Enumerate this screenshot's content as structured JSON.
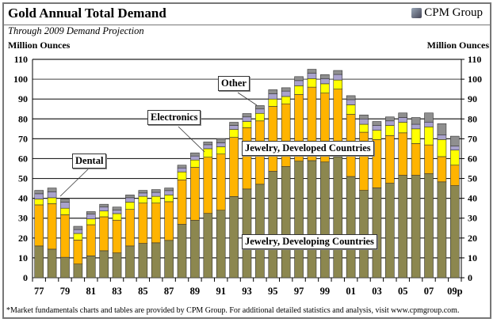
{
  "chart_data": {
    "type": "bar",
    "stacked": true,
    "title": "Gold Annual Total Demand",
    "subtitle": "Through 2009 Demand Projection",
    "ylabel": "Million Ounces",
    "ylabel_right": "Million Ounces",
    "ylim": [
      0,
      110
    ],
    "yticks": [
      0,
      10,
      20,
      30,
      40,
      50,
      60,
      70,
      80,
      90,
      100,
      110
    ],
    "grid": true,
    "categories": [
      "77",
      "78",
      "79",
      "80",
      "81",
      "82",
      "83",
      "84",
      "85",
      "86",
      "87",
      "88",
      "89",
      "90",
      "91",
      "92",
      "93",
      "94",
      "95",
      "96",
      "97",
      "98",
      "99",
      "00",
      "01",
      "02",
      "03",
      "04",
      "05",
      "06",
      "07",
      "08",
      "09p"
    ],
    "xtick_labels": [
      "77",
      "",
      "79",
      "",
      "81",
      "",
      "83",
      "",
      "85",
      "",
      "87",
      "",
      "89",
      "",
      "91",
      "",
      "93",
      "",
      "95",
      "",
      "97",
      "",
      "99",
      "",
      "01",
      "",
      "03",
      "",
      "05",
      "",
      "07",
      "",
      "09p"
    ],
    "series": [
      {
        "name": "Jewelry, Developing Countries",
        "color": "#8C874F",
        "values": [
          16.0,
          14.4,
          10.3,
          6.9,
          11.0,
          13.6,
          12.5,
          16.0,
          17.3,
          17.6,
          18.8,
          26.9,
          28.9,
          32.4,
          34.0,
          40.9,
          44.7,
          47.1,
          53.6,
          56.0,
          58.7,
          59.0,
          58.3,
          61.0,
          51.0,
          44.0,
          45.3,
          47.6,
          51.6,
          51.6,
          52.4,
          48.3,
          46.4
        ]
      },
      {
        "name": "Jewelry, Developed Countries",
        "color": "#FFB400",
        "values": [
          20.7,
          22.9,
          21.4,
          12.1,
          15.7,
          17.1,
          16.5,
          18.4,
          20.3,
          20.0,
          19.5,
          22.4,
          26.7,
          28.3,
          28.3,
          29.8,
          30.9,
          31.9,
          32.7,
          31.6,
          33.6,
          37.0,
          34.7,
          34.0,
          31.3,
          29.3,
          24.3,
          24.0,
          21.4,
          16.0,
          14.5,
          12.7,
          10.3
        ]
      },
      {
        "name": "Electronics",
        "color": "#FFFF00",
        "values": [
          2.9,
          3.0,
          3.3,
          3.3,
          2.9,
          2.9,
          3.3,
          3.7,
          3.4,
          3.4,
          3.4,
          4.0,
          3.7,
          4.3,
          3.7,
          4.0,
          3.1,
          3.8,
          3.7,
          3.7,
          4.4,
          4.3,
          4.7,
          4.6,
          4.8,
          4.0,
          4.7,
          5.1,
          5.3,
          7.4,
          9.1,
          8.6,
          7.6
        ]
      },
      {
        "name": "Dental",
        "color": "#A9A2CC",
        "values": [
          2.7,
          3.0,
          3.0,
          2.0,
          2.4,
          2.0,
          1.7,
          2.2,
          1.7,
          2.0,
          2.2,
          2.0,
          2.0,
          2.0,
          2.0,
          2.0,
          2.3,
          2.2,
          2.7,
          2.7,
          2.6,
          2.7,
          2.6,
          2.8,
          2.6,
          2.7,
          2.4,
          2.3,
          2.4,
          2.3,
          2.4,
          2.4,
          2.0
        ]
      },
      {
        "name": "Other",
        "color": "#8F8F8F",
        "values": [
          1.7,
          1.9,
          1.7,
          1.6,
          1.3,
          1.4,
          1.6,
          1.4,
          1.3,
          1.4,
          1.3,
          1.4,
          1.6,
          1.4,
          2.0,
          1.6,
          1.7,
          1.7,
          2.0,
          1.7,
          2.0,
          2.0,
          2.0,
          2.0,
          2.0,
          2.0,
          2.0,
          2.0,
          2.3,
          3.4,
          4.6,
          5.6,
          5.0
        ]
      }
    ],
    "annotations": [
      "Dental",
      "Electronics",
      "Other",
      "Jewelry, Developed Countries",
      "Jewelry, Developing Countries"
    ]
  },
  "logo": {
    "text": "CPM Group"
  },
  "footer": "*Market fundamentals charts and tables are provided by CPM Group. For additional detailed statistics and analysis, visit www.cpmgroup.com."
}
